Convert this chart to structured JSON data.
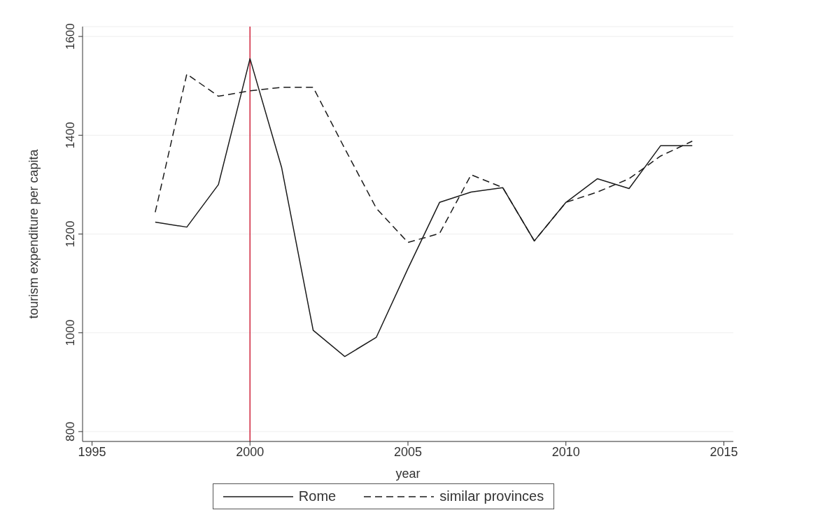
{
  "chart_data": {
    "type": "line",
    "xlabel": "year",
    "ylabel": "tourism expenditure per capita",
    "x": [
      1997,
      1998,
      1999,
      2000,
      2001,
      2002,
      2003,
      2004,
      2005,
      2006,
      2007,
      2008,
      2009,
      2010,
      2011,
      2012,
      2013,
      2014
    ],
    "series": [
      {
        "name": "Rome",
        "color": "#1a1a1a",
        "line_style": "solid",
        "values": [
          1224,
          1214,
          1300,
          1555,
          1335,
          1005,
          952,
          991,
          1130,
          1264,
          1285,
          1294,
          1186,
          1264,
          1312,
          1292,
          1379,
          1379
        ]
      },
      {
        "name": "similar provinces",
        "color": "#1a1a1a",
        "line_style": "dashed",
        "values": [
          1244,
          1524,
          1479,
          1490,
          1497,
          1497,
          1373,
          1252,
          1183,
          1201,
          1320,
          1294,
          1186,
          1264,
          1285,
          1312,
          1358,
          1388
        ]
      }
    ],
    "xlim": [
      1994.7,
      2015.3
    ],
    "xticks": [
      1995,
      2000,
      2005,
      2010,
      2015
    ],
    "ylim": [
      780,
      1620
    ],
    "yticks": [
      800,
      1000,
      1200,
      1400,
      1600
    ],
    "grid": "y",
    "legend": "bottom",
    "marker": "none",
    "ref_lines": [
      {
        "axis": "x",
        "value": 2000,
        "color": "#d0243c",
        "line_style": "solid"
      }
    ]
  }
}
